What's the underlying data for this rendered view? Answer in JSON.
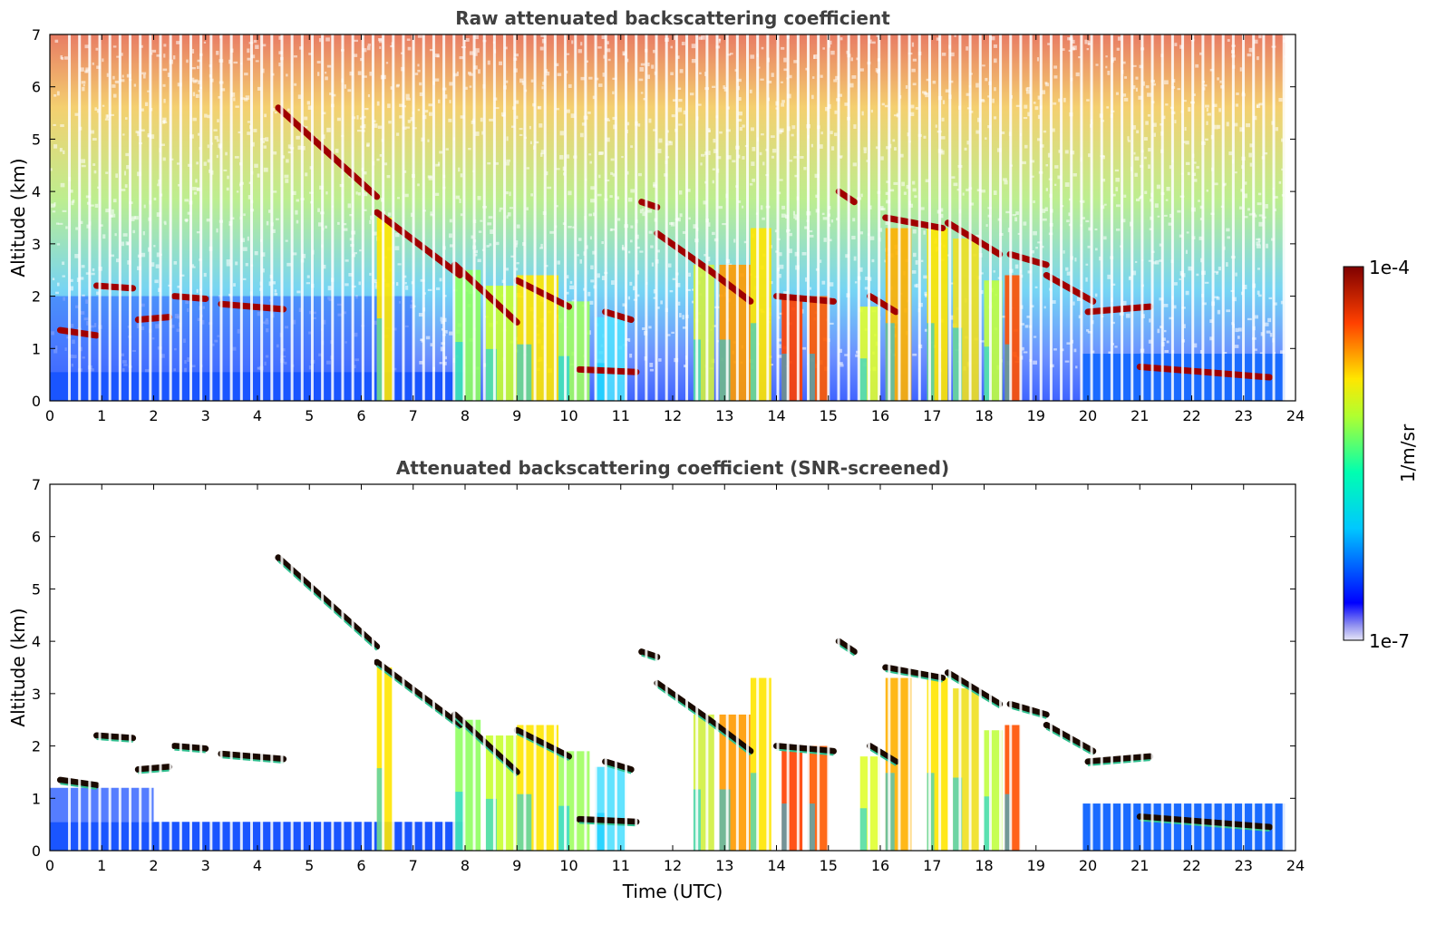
{
  "chart_data": [
    {
      "type": "heatmap",
      "title": "Raw attenuated backscattering coefficient",
      "xlabel": "",
      "ylabel": "Altitude (km)",
      "xlim": [
        0,
        24
      ],
      "ylim": [
        0,
        7
      ],
      "xticks": [
        "0",
        "1",
        "2",
        "3",
        "4",
        "5",
        "6",
        "7",
        "8",
        "9",
        "10",
        "11",
        "12",
        "13",
        "14",
        "15",
        "16",
        "17",
        "18",
        "19",
        "20",
        "21",
        "22",
        "23",
        "24"
      ],
      "yticks": [
        "0",
        "1",
        "2",
        "3",
        "4",
        "5",
        "6",
        "7"
      ],
      "screened": false,
      "cloud_layers": [
        {
          "x": [
            0.2,
            0.9
          ],
          "y": [
            1.35,
            1.25
          ]
        },
        {
          "x": [
            0.9,
            1.6
          ],
          "y": [
            2.2,
            2.15
          ]
        },
        {
          "x": [
            1.7,
            2.3
          ],
          "y": [
            1.55,
            1.6
          ]
        },
        {
          "x": [
            2.4,
            3.0
          ],
          "y": [
            2.0,
            1.95
          ]
        },
        {
          "x": [
            3.3,
            4.5
          ],
          "y": [
            1.85,
            1.75
          ]
        },
        {
          "x": [
            4.4,
            6.3
          ],
          "y": [
            5.6,
            3.9
          ]
        },
        {
          "x": [
            6.3,
            7.9
          ],
          "y": [
            3.6,
            2.4
          ]
        },
        {
          "x": [
            7.8,
            9.0
          ],
          "y": [
            2.6,
            1.5
          ]
        },
        {
          "x": [
            9.0,
            10.0
          ],
          "y": [
            2.3,
            1.8
          ]
        },
        {
          "x": [
            10.2,
            11.3
          ],
          "y": [
            0.6,
            0.55
          ]
        },
        {
          "x": [
            10.7,
            11.2
          ],
          "y": [
            1.7,
            1.55
          ]
        },
        {
          "x": [
            11.4,
            11.7
          ],
          "y": [
            3.8,
            3.7
          ]
        },
        {
          "x": [
            11.7,
            12.7
          ],
          "y": [
            3.2,
            2.5
          ]
        },
        {
          "x": [
            12.7,
            13.5
          ],
          "y": [
            2.5,
            1.9
          ]
        },
        {
          "x": [
            14.0,
            15.1
          ],
          "y": [
            2.0,
            1.9
          ]
        },
        {
          "x": [
            15.2,
            15.5
          ],
          "y": [
            4.0,
            3.8
          ]
        },
        {
          "x": [
            15.8,
            16.3
          ],
          "y": [
            2.0,
            1.7
          ]
        },
        {
          "x": [
            16.1,
            17.2
          ],
          "y": [
            3.5,
            3.3
          ]
        },
        {
          "x": [
            17.3,
            18.3
          ],
          "y": [
            3.4,
            2.8
          ]
        },
        {
          "x": [
            18.5,
            19.2
          ],
          "y": [
            2.8,
            2.6
          ]
        },
        {
          "x": [
            19.2,
            20.1
          ],
          "y": [
            2.4,
            1.9
          ]
        },
        {
          "x": [
            20.0,
            21.2
          ],
          "y": [
            1.7,
            1.8
          ]
        },
        {
          "x": [
            21.0,
            23.5
          ],
          "y": [
            0.65,
            0.45
          ]
        }
      ]
    },
    {
      "type": "heatmap",
      "title": "Attenuated backscattering coefficient (SNR-screened)",
      "xlabel": "Time (UTC)",
      "ylabel": "Altitude (km)",
      "xlim": [
        0,
        24
      ],
      "ylim": [
        0,
        7
      ],
      "xticks": [
        "0",
        "1",
        "2",
        "3",
        "4",
        "5",
        "6",
        "7",
        "8",
        "9",
        "10",
        "11",
        "12",
        "13",
        "14",
        "15",
        "16",
        "17",
        "18",
        "19",
        "20",
        "21",
        "22",
        "23",
        "24"
      ],
      "yticks": [
        "0",
        "1",
        "2",
        "3",
        "4",
        "5",
        "6",
        "7"
      ],
      "screened": true
    }
  ],
  "colorbar": {
    "label": "1/m/sr",
    "max_label": "1e-4",
    "min_label": "1e-7",
    "colors": [
      "#e6e6f7",
      "#0000ff",
      "#00c8ff",
      "#00ffb0",
      "#ffe600",
      "#ff4000",
      "#7f0000"
    ]
  }
}
